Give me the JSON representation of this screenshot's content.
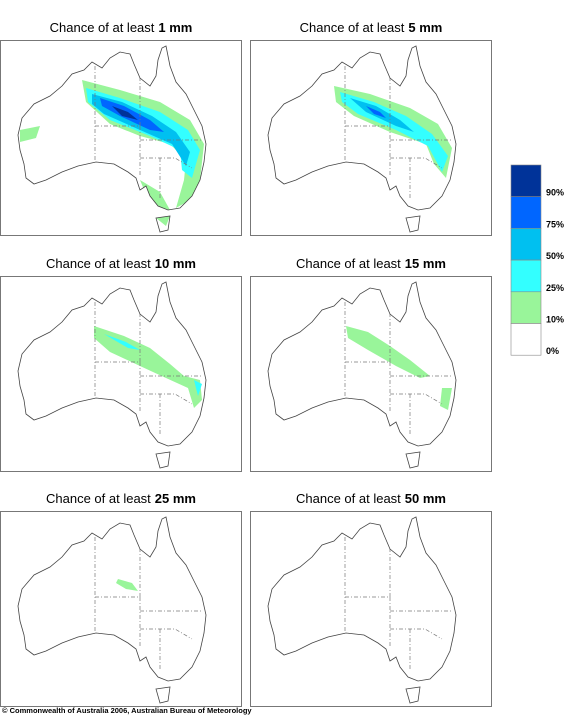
{
  "panels": [
    {
      "title": "Chance of at least",
      "amount": "1 mm"
    },
    {
      "title": "Chance of at least",
      "amount": "5 mm"
    },
    {
      "title": "Chance of at least",
      "amount": "10 mm"
    },
    {
      "title": "Chance of at least",
      "amount": "15 mm"
    },
    {
      "title": "Chance of at least",
      "amount": "25 mm"
    },
    {
      "title": "Chance of at least",
      "amount": "50 mm"
    }
  ],
  "legend": {
    "colors": [
      "#003399",
      "#0066ff",
      "#00c0f0",
      "#33ffff",
      "#99f59a",
      "#ffffff"
    ],
    "labels": [
      "90%",
      "75%",
      "50%",
      "25%",
      "10%",
      "0%"
    ]
  },
  "copyright": "© Commonwealth of Australia 2006, Australian Bureau of Meteorology"
}
